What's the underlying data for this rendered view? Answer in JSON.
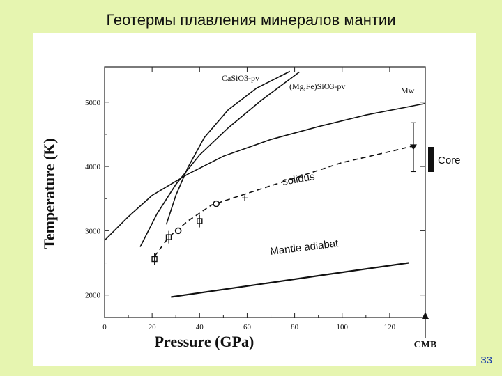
{
  "slide": {
    "title": "Геотермы плавления минералов мантии",
    "page_number": "33"
  },
  "chart_data": {
    "type": "line",
    "xlabel": "Pressure (GPa)",
    "ylabel": "Temperature (K)",
    "xlim": [
      0,
      135
    ],
    "ylim": [
      1650,
      5550
    ],
    "x_ticks": [
      0,
      20,
      40,
      60,
      80,
      100,
      120
    ],
    "y_ticks": [
      2000,
      3000,
      4000,
      5000
    ],
    "grid": false,
    "series": [
      {
        "name": "CaSiO3-pv",
        "style": "solid",
        "points": [
          [
            26,
            3100
          ],
          [
            30,
            3550
          ],
          [
            35,
            3980
          ],
          [
            42,
            4450
          ],
          [
            52,
            4880
          ],
          [
            64,
            5220
          ],
          [
            78,
            5480
          ]
        ]
      },
      {
        "name": "(Mg,Fe)SiO3-pv",
        "style": "solid",
        "points": [
          [
            15,
            2750
          ],
          [
            22,
            3260
          ],
          [
            30,
            3720
          ],
          [
            40,
            4180
          ],
          [
            52,
            4600
          ],
          [
            66,
            5030
          ],
          [
            82,
            5470
          ]
        ]
      },
      {
        "name": "Mw",
        "style": "solid",
        "points": [
          [
            0,
            2850
          ],
          [
            10,
            3220
          ],
          [
            20,
            3550
          ],
          [
            35,
            3880
          ],
          [
            50,
            4160
          ],
          [
            70,
            4420
          ],
          [
            90,
            4620
          ],
          [
            110,
            4800
          ],
          [
            135,
            4980
          ]
        ]
      },
      {
        "name": "solidus",
        "style": "dashed",
        "points": [
          [
            21,
            2600
          ],
          [
            27,
            2900
          ],
          [
            35,
            3150
          ],
          [
            45,
            3400
          ],
          [
            60,
            3580
          ],
          [
            80,
            3820
          ],
          [
            100,
            4060
          ],
          [
            120,
            4230
          ],
          [
            130,
            4320
          ]
        ]
      },
      {
        "name": "Mantle adiabat",
        "style": "solid",
        "points": [
          [
            28,
            1970
          ],
          [
            60,
            2140
          ],
          [
            90,
            2300
          ],
          [
            128,
            2500
          ]
        ]
      }
    ],
    "measurements": [
      {
        "x": 21,
        "y": 2560,
        "marker": "square"
      },
      {
        "x": 27,
        "y": 2900,
        "marker": "square"
      },
      {
        "x": 31,
        "y": 3000,
        "marker": "circle"
      },
      {
        "x": 40,
        "y": 3150,
        "marker": "square"
      },
      {
        "x": 47,
        "y": 3420,
        "marker": "circle"
      },
      {
        "x": 59,
        "y": 3510,
        "marker": "cross"
      },
      {
        "x": 130,
        "y": 4300,
        "marker": "triangle-down",
        "error": 380
      }
    ],
    "annotations": {
      "core_label": "Core",
      "cmb_label": "CMB"
    }
  }
}
